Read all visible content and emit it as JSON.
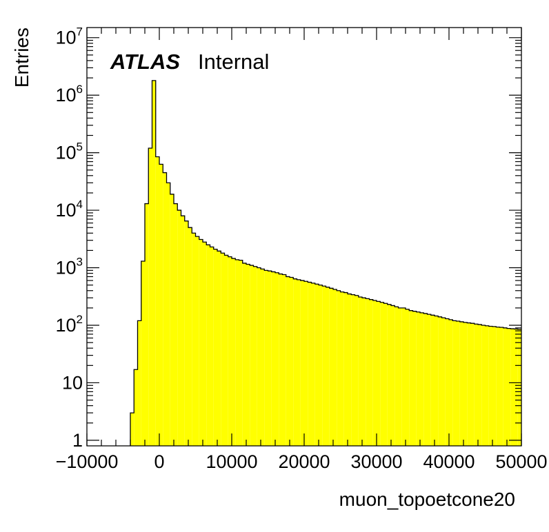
{
  "chart_data": {
    "type": "histogram",
    "xlabel": "muon_topoetcone20",
    "ylabel": "Entries",
    "annotation": {
      "experiment": "ATLAS",
      "status": "Internal"
    },
    "xlim": [
      -10000,
      50000
    ],
    "ylim": [
      0.8,
      15000000
    ],
    "yscale": "log",
    "grid": false,
    "fill_color": "#ffff00",
    "line_color": "#000000",
    "x_ticks": [
      "−10000",
      "0",
      "10000",
      "20000",
      "30000",
      "40000",
      "50000"
    ],
    "y_ticks": [
      {
        "value": 1,
        "base": "1",
        "exp": ""
      },
      {
        "value": 10,
        "base": "10",
        "exp": ""
      },
      {
        "value": 100,
        "base": "10",
        "exp": "2"
      },
      {
        "value": 1000,
        "base": "10",
        "exp": "3"
      },
      {
        "value": 10000,
        "base": "10",
        "exp": "4"
      },
      {
        "value": 100000,
        "base": "10",
        "exp": "5"
      },
      {
        "value": 1000000,
        "base": "10",
        "exp": "6"
      },
      {
        "value": 10000000,
        "base": "10",
        "exp": "7"
      }
    ],
    "bins": {
      "start": -4000,
      "width": 500,
      "values": [
        3,
        17,
        120,
        1300,
        13000,
        120000,
        1800000,
        85000,
        63000,
        45000,
        30000,
        19000,
        13000,
        10000,
        8000,
        6500,
        5000,
        4000,
        3500,
        3100,
        2800,
        2500,
        2300,
        2100,
        1950,
        1800,
        1650,
        1550,
        1450,
        1380,
        1350,
        1200,
        1150,
        1100,
        1050,
        1000,
        950,
        900,
        880,
        850,
        820,
        780,
        760,
        700,
        680,
        640,
        620,
        600,
        580,
        560,
        540,
        520,
        500,
        480,
        460,
        440,
        420,
        400,
        380,
        370,
        350,
        340,
        330,
        310,
        300,
        290,
        280,
        270,
        260,
        250,
        240,
        230,
        220,
        210,
        200,
        200,
        190,
        180,
        175,
        170,
        165,
        160,
        155,
        150,
        145,
        140,
        135,
        130,
        125,
        120,
        118,
        115,
        112,
        110,
        108,
        105,
        103,
        100,
        98,
        96,
        95,
        93,
        92,
        90,
        88,
        87,
        86,
        85
      ]
    }
  }
}
